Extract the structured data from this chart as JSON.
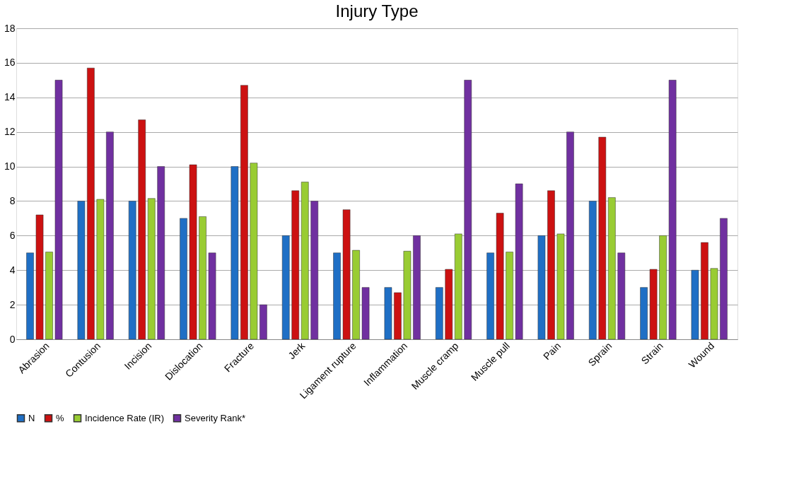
{
  "chart_data": {
    "type": "bar",
    "title": "Injury Type",
    "categories": [
      "Abrasion",
      "Contusion",
      "Incision",
      "Dislocation",
      "Fracture",
      "Jerk",
      "Ligament rupture",
      "Inflammation",
      "Muscle cramp",
      "Muscle pull",
      "Pain",
      "Sprain",
      "Strain",
      "Wound"
    ],
    "series": [
      {
        "name": "N",
        "color": "#1f6fc5",
        "values": [
          5,
          8,
          8,
          7,
          10,
          6,
          5,
          3,
          3,
          5,
          6,
          8,
          3,
          4
        ]
      },
      {
        "name": "%",
        "color": "#cc1111",
        "values": [
          7.2,
          15.7,
          12.7,
          10.1,
          14.7,
          8.6,
          7.5,
          2.7,
          4.05,
          7.3,
          8.6,
          11.7,
          4.05,
          5.6
        ]
      },
      {
        "name": "Incidence Rate (IR)",
        "color": "#99cc33",
        "values": [
          5.05,
          8.1,
          8.15,
          7.1,
          10.2,
          9.1,
          5.15,
          5.1,
          6.1,
          5.05,
          6.1,
          8.2,
          6.0,
          4.1
        ]
      },
      {
        "name": "Severity Rank*",
        "color": "#7030a0",
        "values": [
          15,
          12,
          10,
          5,
          2,
          8,
          3,
          6,
          15,
          9,
          12,
          5,
          15,
          7
        ]
      }
    ],
    "ylim": [
      0,
      18
    ],
    "yticks": [
      0,
      2,
      4,
      6,
      8,
      10,
      12,
      14,
      16,
      18
    ],
    "grid": "y",
    "legend": "bottom"
  }
}
